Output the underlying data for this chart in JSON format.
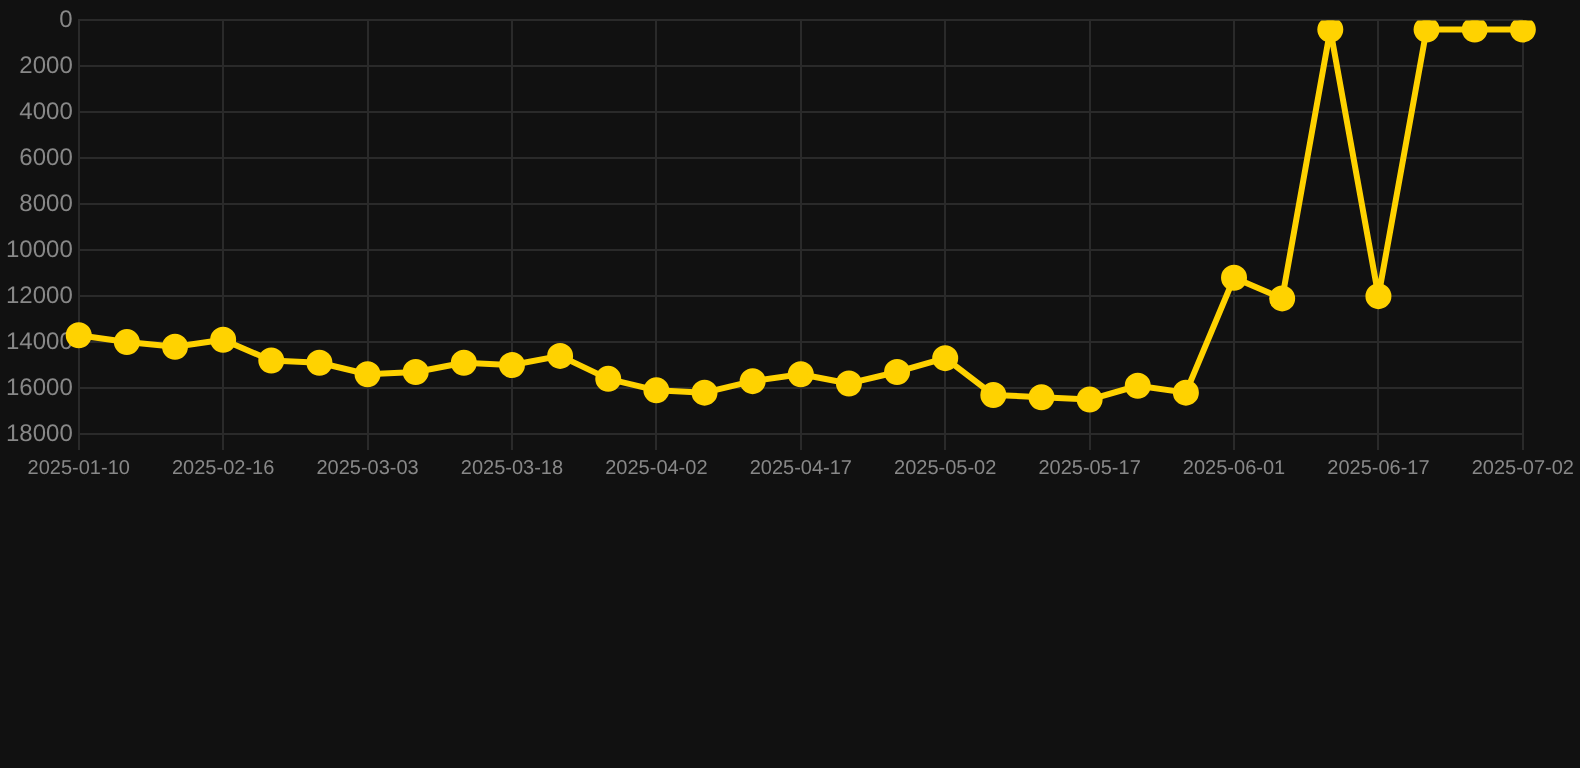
{
  "chart_data": {
    "type": "line",
    "categories": [
      "2025-01-10",
      null,
      null,
      "2025-02-16",
      null,
      null,
      "2025-03-03",
      null,
      null,
      "2025-03-18",
      null,
      null,
      "2025-04-02",
      null,
      null,
      "2025-04-17",
      null,
      null,
      "2025-05-02",
      null,
      null,
      "2025-05-17",
      null,
      null,
      "2025-06-01",
      null,
      null,
      "2025-06-17",
      null,
      null,
      "2025-07-02"
    ],
    "series": [
      {
        "color": "#ffd200",
        "values": [
          13700,
          14000,
          14200,
          13900,
          14800,
          14900,
          15400,
          15300,
          14900,
          15000,
          14600,
          15600,
          16100,
          16200,
          15700,
          15400,
          15800,
          15300,
          14700,
          16300,
          16400,
          16500,
          15900,
          16200,
          11200,
          12100,
          400,
          12000,
          400,
          400,
          400
        ]
      }
    ],
    "ylim": [
      18000,
      0
    ],
    "yticks": [
      0,
      2000,
      4000,
      6000,
      8000,
      10000,
      12000,
      14000,
      16000,
      18000
    ],
    "grid": true,
    "marker": "circle",
    "line_style": "solid"
  }
}
